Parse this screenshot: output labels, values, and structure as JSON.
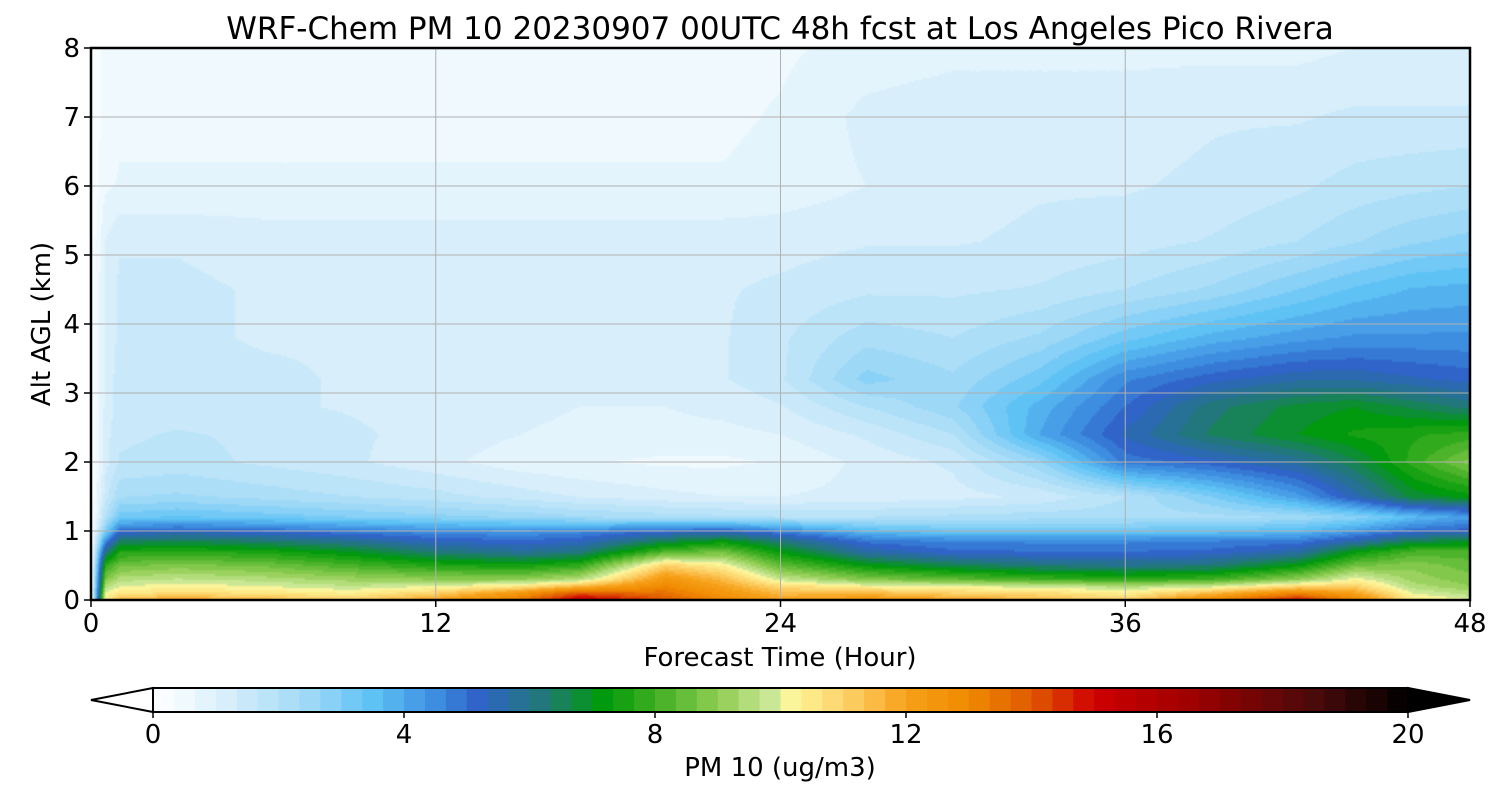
{
  "chart_data": {
    "type": "heatmap",
    "title": "WRF-Chem PM 10  20230907 00UTC 48h fcst at Los Angeles Pico Rivera",
    "xlabel": "Forecast Time (Hour)",
    "ylabel": "Alt AGL (km)",
    "xlim": [
      0,
      48
    ],
    "ylim": [
      0,
      8
    ],
    "xticks": [
      0,
      12,
      24,
      36,
      48
    ],
    "yticks": [
      0,
      1,
      2,
      3,
      4,
      5,
      6,
      7,
      8
    ],
    "grid": true,
    "colorbar": {
      "label": "PM 10  (ug/m3)",
      "min": 0,
      "max": 20,
      "ticks": [
        0,
        4,
        8,
        12,
        16,
        20
      ],
      "extend": "both",
      "colorstops": [
        {
          "value": 0,
          "color": "#ffffff"
        },
        {
          "value": 1,
          "color": "#dff2fc"
        },
        {
          "value": 2.5,
          "color": "#9ed8f7"
        },
        {
          "value": 3.5,
          "color": "#5ec2f5"
        },
        {
          "value": 4.5,
          "color": "#3d8ee0"
        },
        {
          "value": 5.2,
          "color": "#2f62c7"
        },
        {
          "value": 6.2,
          "color": "#22787a"
        },
        {
          "value": 7.2,
          "color": "#009a0a"
        },
        {
          "value": 8,
          "color": "#3fae22"
        },
        {
          "value": 9,
          "color": "#8fcd52"
        },
        {
          "value": 9.9,
          "color": "#cfe99a"
        },
        {
          "value": 10.2,
          "color": "#fff79a"
        },
        {
          "value": 11,
          "color": "#fdd36b"
        },
        {
          "value": 12,
          "color": "#f7a11a"
        },
        {
          "value": 13,
          "color": "#f08a00"
        },
        {
          "value": 14,
          "color": "#e05a00"
        },
        {
          "value": 15,
          "color": "#cf0000"
        },
        {
          "value": 16.5,
          "color": "#a00000"
        },
        {
          "value": 18.5,
          "color": "#4a0a0a"
        },
        {
          "value": 20,
          "color": "#000000"
        }
      ]
    },
    "field": {
      "t": [
        0,
        0.5,
        1,
        3,
        6,
        9,
        12,
        15,
        17,
        20,
        22,
        24,
        27,
        30,
        33,
        36,
        39,
        42,
        44,
        46,
        48
      ],
      "z": [
        0,
        0.1,
        0.2,
        0.3,
        0.5,
        0.7,
        0.85,
        1.0,
        1.2,
        1.5,
        2.0,
        2.4,
        2.8,
        3.2,
        3.8,
        4.5,
        5.2,
        6.0,
        7.0,
        8.0
      ],
      "values": [
        [
          0,
          10.5,
          11.5,
          12,
          11.5,
          11,
          12,
          13.5,
          15.5,
          14,
          13,
          12,
          12.5,
          12,
          11.5,
          11,
          13,
          15,
          13,
          10.5,
          10
        ],
        [
          0,
          10,
          10.5,
          10.8,
          10.6,
          10.3,
          11,
          12.5,
          14,
          13.5,
          12.5,
          11.5,
          11.5,
          11,
          10.8,
          10.3,
          11.5,
          13,
          12,
          10,
          9.5
        ],
        [
          0,
          9.5,
          10,
          10.2,
          10,
          9.7,
          10,
          10.5,
          11.5,
          13,
          12,
          10.8,
          10.2,
          10,
          9.8,
          9.5,
          9.8,
          10.8,
          11,
          9.5,
          9
        ],
        [
          0,
          8.8,
          9.5,
          9.7,
          9.5,
          9.2,
          9,
          9,
          9.5,
          12.5,
          11.5,
          9.8,
          8.8,
          8.4,
          8,
          7.8,
          8,
          9,
          10.2,
          9.2,
          8.8
        ],
        [
          0,
          7.8,
          8.6,
          8.8,
          8.6,
          8.1,
          7.6,
          7.4,
          7.8,
          11,
          10.3,
          8.4,
          7.2,
          6.6,
          6.2,
          6,
          6.2,
          7.2,
          8.6,
          8.9,
          8.5
        ],
        [
          0,
          6,
          7.6,
          7.7,
          7.5,
          7,
          6.2,
          5.8,
          6.1,
          8.2,
          8.6,
          7.2,
          5.6,
          5.1,
          5,
          5,
          5.1,
          5.6,
          7.2,
          8.1,
          8.1
        ],
        [
          0,
          4.5,
          6.4,
          6.6,
          6.3,
          5.9,
          5.3,
          5.1,
          5.3,
          6.6,
          7.2,
          6.2,
          4.9,
          4.6,
          4.6,
          4.6,
          4.7,
          4.8,
          5.6,
          6.6,
          6.9
        ],
        [
          0,
          3,
          5,
          5.2,
          5,
          4.7,
          4.4,
          4.3,
          4.5,
          5,
          5.2,
          4.6,
          3.6,
          3.3,
          3.3,
          3.3,
          3.4,
          3.6,
          4.2,
          5,
          5.2
        ],
        [
          0,
          2,
          3.2,
          3.4,
          3.2,
          3,
          2.8,
          2.6,
          2.4,
          2.2,
          2.1,
          2,
          2,
          2.1,
          2.2,
          2.2,
          2.2,
          2.4,
          2.8,
          3.6,
          4.2
        ],
        [
          0,
          1.5,
          2.3,
          2.4,
          2.2,
          2,
          1.8,
          1.5,
          1.3,
          1.1,
          1,
          1,
          1.1,
          1.2,
          1.4,
          2,
          3,
          4.2,
          5.5,
          6.8,
          7.2
        ],
        [
          0,
          1.2,
          1.7,
          1.8,
          1.6,
          1.4,
          1.1,
          0.8,
          0.7,
          0.6,
          0.6,
          0.7,
          1.1,
          1.4,
          2.6,
          4.8,
          5.2,
          5.8,
          6.6,
          7.8,
          8.8
        ],
        [
          0,
          1.2,
          1.6,
          1.7,
          1.6,
          1.4,
          1.2,
          1,
          0.9,
          0.9,
          0.9,
          1,
          1.4,
          2,
          4,
          5.4,
          6.4,
          7,
          7.4,
          7.6,
          7.8
        ],
        [
          0,
          1.1,
          1.5,
          1.5,
          1.4,
          1.3,
          1.2,
          1.1,
          1,
          1,
          1.1,
          1.3,
          2,
          2.6,
          3.8,
          5,
          6.2,
          6.8,
          7,
          6.6,
          6.2
        ],
        [
          0,
          1.1,
          1.5,
          1.5,
          1.4,
          1.3,
          1.2,
          1.2,
          1.2,
          1.2,
          1.3,
          1.6,
          2.8,
          2.4,
          3.2,
          4.6,
          5.2,
          5.6,
          5.6,
          5.4,
          5.2
        ],
        [
          0,
          1.1,
          1.4,
          1.4,
          1.3,
          1.3,
          1.2,
          1.2,
          1.2,
          1.2,
          1.3,
          1.6,
          2.2,
          2,
          2.4,
          3.2,
          3.8,
          4.2,
          4.4,
          4.4,
          4.4
        ],
        [
          0,
          1.1,
          1.4,
          1.4,
          1.3,
          1.3,
          1.2,
          1.2,
          1.2,
          1.2,
          1.3,
          1.4,
          1.6,
          1.6,
          1.7,
          2,
          2.4,
          3,
          3.4,
          3.7,
          3.8
        ],
        [
          0,
          1,
          1.3,
          1.3,
          1.2,
          1.2,
          1.2,
          1.2,
          1.2,
          1.2,
          1.2,
          1.2,
          1.3,
          1.3,
          1.4,
          1.5,
          1.7,
          2,
          2.3,
          2.6,
          2.8
        ],
        [
          0,
          0.6,
          0.7,
          0.7,
          0.7,
          0.7,
          0.7,
          0.7,
          0.7,
          0.7,
          0.7,
          0.8,
          1,
          1.2,
          1.3,
          1.3,
          1.4,
          1.6,
          1.8,
          1.9,
          2
        ],
        [
          0,
          0.5,
          0.6,
          0.6,
          0.6,
          0.6,
          0.6,
          0.6,
          0.6,
          0.6,
          0.6,
          0.7,
          1.1,
          1.2,
          1.2,
          1.2,
          1.3,
          1.3,
          1.4,
          1.4,
          1.4
        ],
        [
          0,
          0.5,
          0.6,
          0.6,
          0.6,
          0.6,
          0.6,
          0.6,
          0.6,
          0.6,
          0.6,
          0.6,
          0.8,
          0.9,
          0.9,
          0.9,
          0.9,
          0.9,
          1,
          1,
          1
        ]
      ]
    }
  }
}
